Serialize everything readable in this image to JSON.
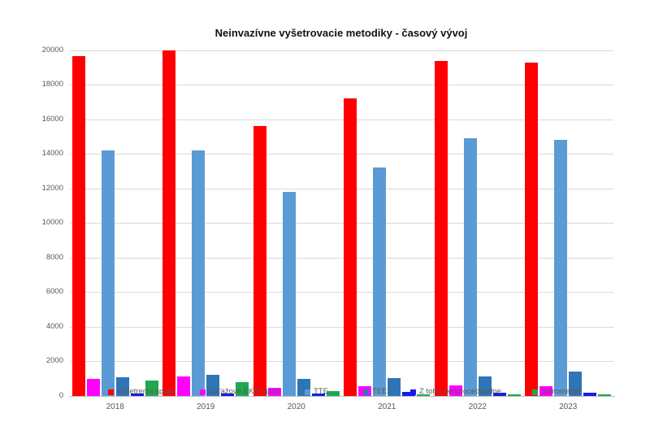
{
  "chart_data": {
    "type": "bar",
    "title": "Neinvazívne vyšetrovacie metodiky - časový vývoj",
    "categories": [
      "2018",
      "2019",
      "2020",
      "2021",
      "2022",
      "2023"
    ],
    "series": [
      {
        "name": "Vyšetrenia spolu",
        "color": "#fe0000",
        "values": [
          19650,
          20000,
          15600,
          17200,
          19400,
          19300
        ]
      },
      {
        "name": "Záťažové EKG spolu",
        "color": "#ff00ff",
        "values": [
          1000,
          1150,
          480,
          580,
          600,
          550
        ]
      },
      {
        "name": "TTE",
        "color": "#5b9bd5",
        "values": [
          14200,
          14200,
          11800,
          13200,
          14900,
          14800
        ]
      },
      {
        "name": "TEE",
        "color": "#2e75b6",
        "values": [
          1100,
          1200,
          1000,
          1050,
          1150,
          1400
        ]
      },
      {
        "name": "Z toho periprocedurálne",
        "color": "#1a1ae8",
        "values": [
          150,
          150,
          120,
          230,
          190,
          200
        ]
      },
      {
        "name": "Spirometria",
        "color": "#1fa84f",
        "values": [
          900,
          800,
          300,
          100,
          100,
          100
        ]
      }
    ],
    "xlabel": "",
    "ylabel": "",
    "ylim": [
      0,
      20000
    ],
    "ytick_step": 2000,
    "yticks": [
      "0",
      "2000",
      "4000",
      "6000",
      "8000",
      "10000",
      "12000",
      "14000",
      "16000",
      "18000",
      "20000"
    ],
    "grid": "horizontal",
    "legend_position": "bottom-inside-overlapping-plot",
    "legend_x_offsets": [
      47,
      160,
      289,
      361,
      419,
      569
    ]
  },
  "colors": {
    "background": "#ffffff",
    "gridline": "#d9d9d9",
    "axis_line": "#bfbfbf",
    "tick_text": "#595959",
    "title_text": "#111111"
  }
}
